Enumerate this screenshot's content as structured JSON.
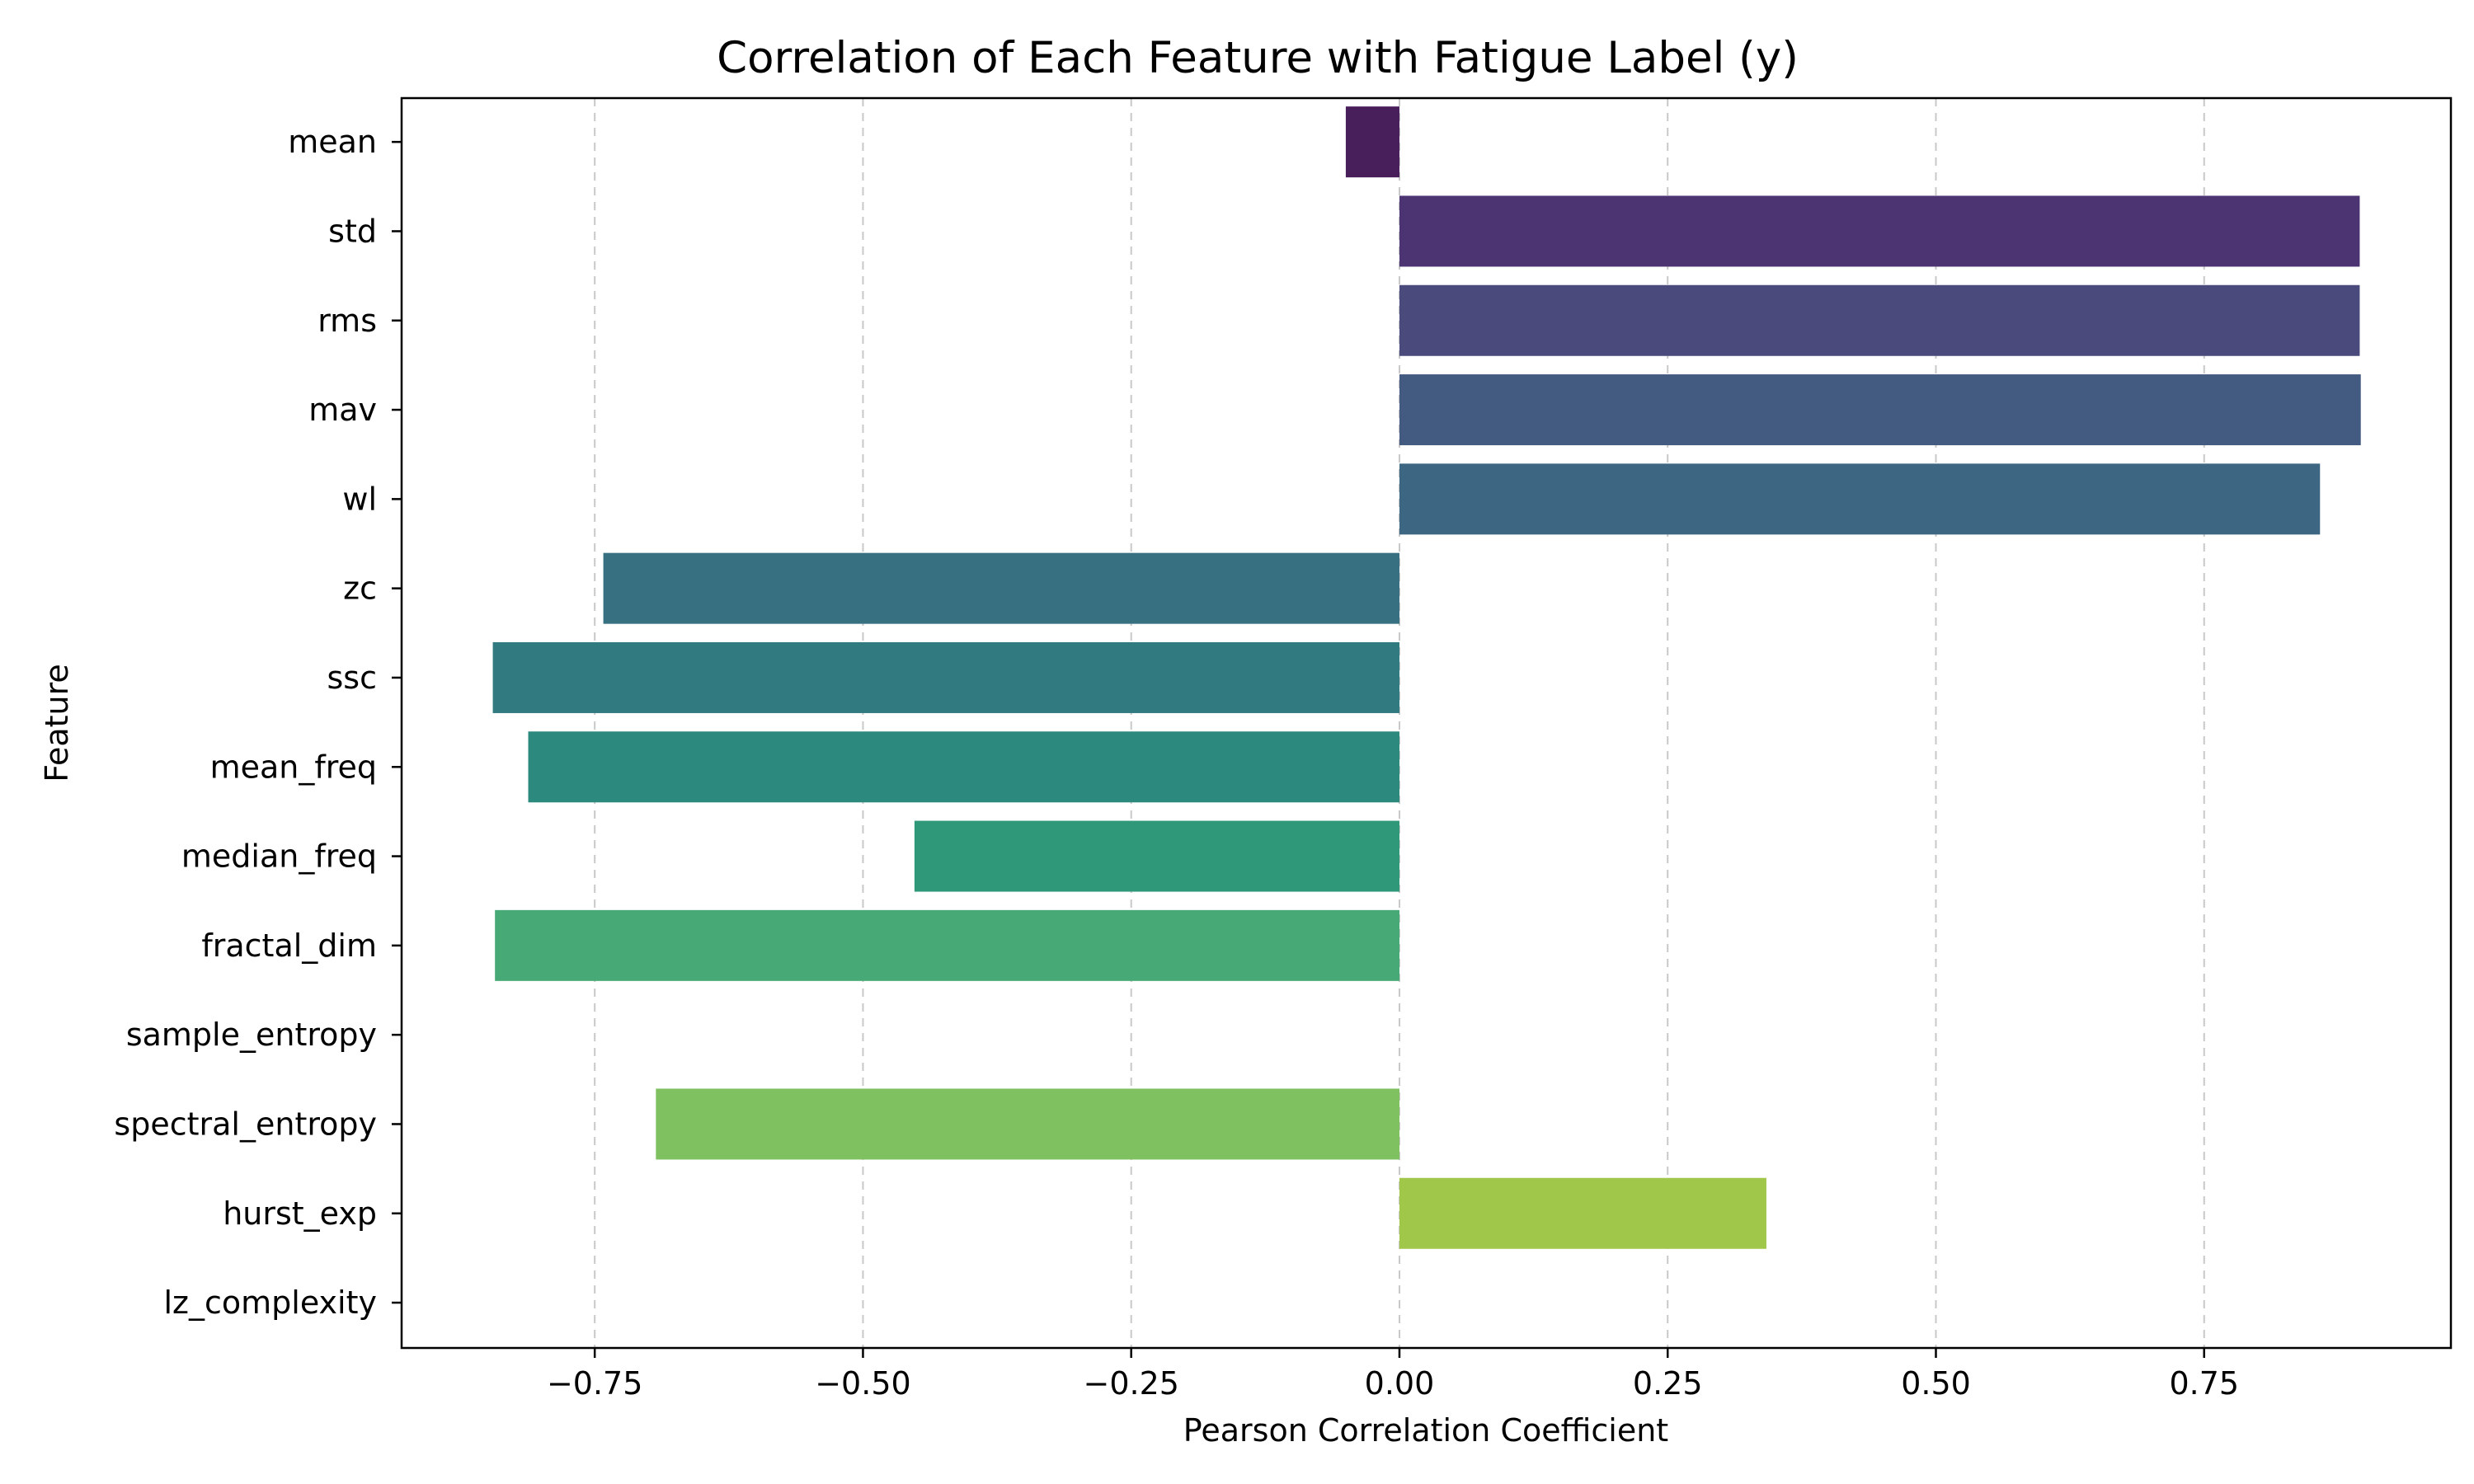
{
  "chart_data": {
    "type": "bar",
    "orientation": "horizontal",
    "title": "Correlation of Each Feature with Fatigue Label (y)",
    "xlabel": "Pearson Correlation Coefficient",
    "ylabel": "Feature",
    "xlim": [
      -0.93,
      0.98
    ],
    "xticks": [
      -0.75,
      -0.5,
      -0.25,
      0.0,
      0.25,
      0.5,
      0.75
    ],
    "xtick_labels": [
      "−0.75",
      "−0.50",
      "−0.25",
      "0.00",
      "0.25",
      "0.50",
      "0.75"
    ],
    "grid": "x-dashed",
    "categories": [
      "mean",
      "std",
      "rms",
      "mav",
      "wl",
      "zc",
      "ssc",
      "mean_freq",
      "median_freq",
      "fractal_dim",
      "sample_entropy",
      "spectral_entropy",
      "hurst_exp",
      "lz_complexity"
    ],
    "values": [
      -0.05,
      0.895,
      0.895,
      0.896,
      0.858,
      -0.742,
      -0.845,
      -0.812,
      -0.452,
      -0.843,
      null,
      -0.693,
      0.342,
      null
    ],
    "colors": [
      "#481f5b",
      "#4c3473",
      "#4a4a7c",
      "#435a81",
      "#3c6682",
      "#377081",
      "#317a80",
      "#2c897e",
      "#2f9879",
      "#46a976",
      "#5fb86c",
      "#7fc161",
      "#a0c64a",
      "#c8d23a"
    ]
  }
}
